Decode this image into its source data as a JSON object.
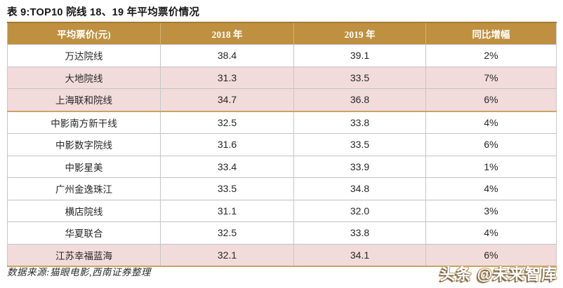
{
  "title": "表 9:TOP10 院线 18、19 年平均票价情况",
  "table": {
    "columns": [
      "平均票价(元)",
      "2018 年",
      "2019 年",
      "同比增幅"
    ],
    "rows": [
      {
        "name": "万达院线",
        "y2018": "38.4",
        "y2019": "39.1",
        "growth": "2%",
        "highlight": false,
        "gold_border_below": false
      },
      {
        "name": "大地院线",
        "y2018": "31.3",
        "y2019": "33.5",
        "growth": "7%",
        "highlight": true,
        "gold_border_below": false
      },
      {
        "name": "上海联和院线",
        "y2018": "34.7",
        "y2019": "36.8",
        "growth": "6%",
        "highlight": true,
        "gold_border_below": true
      },
      {
        "name": "中影南方新干线",
        "y2018": "32.5",
        "y2019": "33.8",
        "growth": "4%",
        "highlight": false,
        "gold_border_below": false
      },
      {
        "name": "中影数字院线",
        "y2018": "31.6",
        "y2019": "33.5",
        "growth": "6%",
        "highlight": false,
        "gold_border_below": false
      },
      {
        "name": "中影星美",
        "y2018": "33.4",
        "y2019": "33.9",
        "growth": "1%",
        "highlight": false,
        "gold_border_below": false
      },
      {
        "name": "广州金逸珠江",
        "y2018": "33.5",
        "y2019": "34.8",
        "growth": "4%",
        "highlight": false,
        "gold_border_below": false
      },
      {
        "name": "横店院线",
        "y2018": "31.1",
        "y2019": "32.0",
        "growth": "3%",
        "highlight": false,
        "gold_border_below": false
      },
      {
        "name": "华夏联合",
        "y2018": "32.5",
        "y2019": "33.8",
        "growth": "4%",
        "highlight": false,
        "gold_border_below": false
      },
      {
        "name": "江苏幸福蓝海",
        "y2018": "32.1",
        "y2019": "34.1",
        "growth": "6%",
        "highlight": true,
        "gold_border_below": false
      }
    ]
  },
  "source_note": "数据来源:猫眼电影,西南证券整理",
  "watermark": "头条 @未来智库",
  "colors": {
    "header_bg": "#be9040",
    "header_text": "#ffffff",
    "highlight_row_bg": "#f2dcdb",
    "gold_border": "#c9a464",
    "grid_border": "#c6c6c6",
    "body_text": "#262626"
  }
}
